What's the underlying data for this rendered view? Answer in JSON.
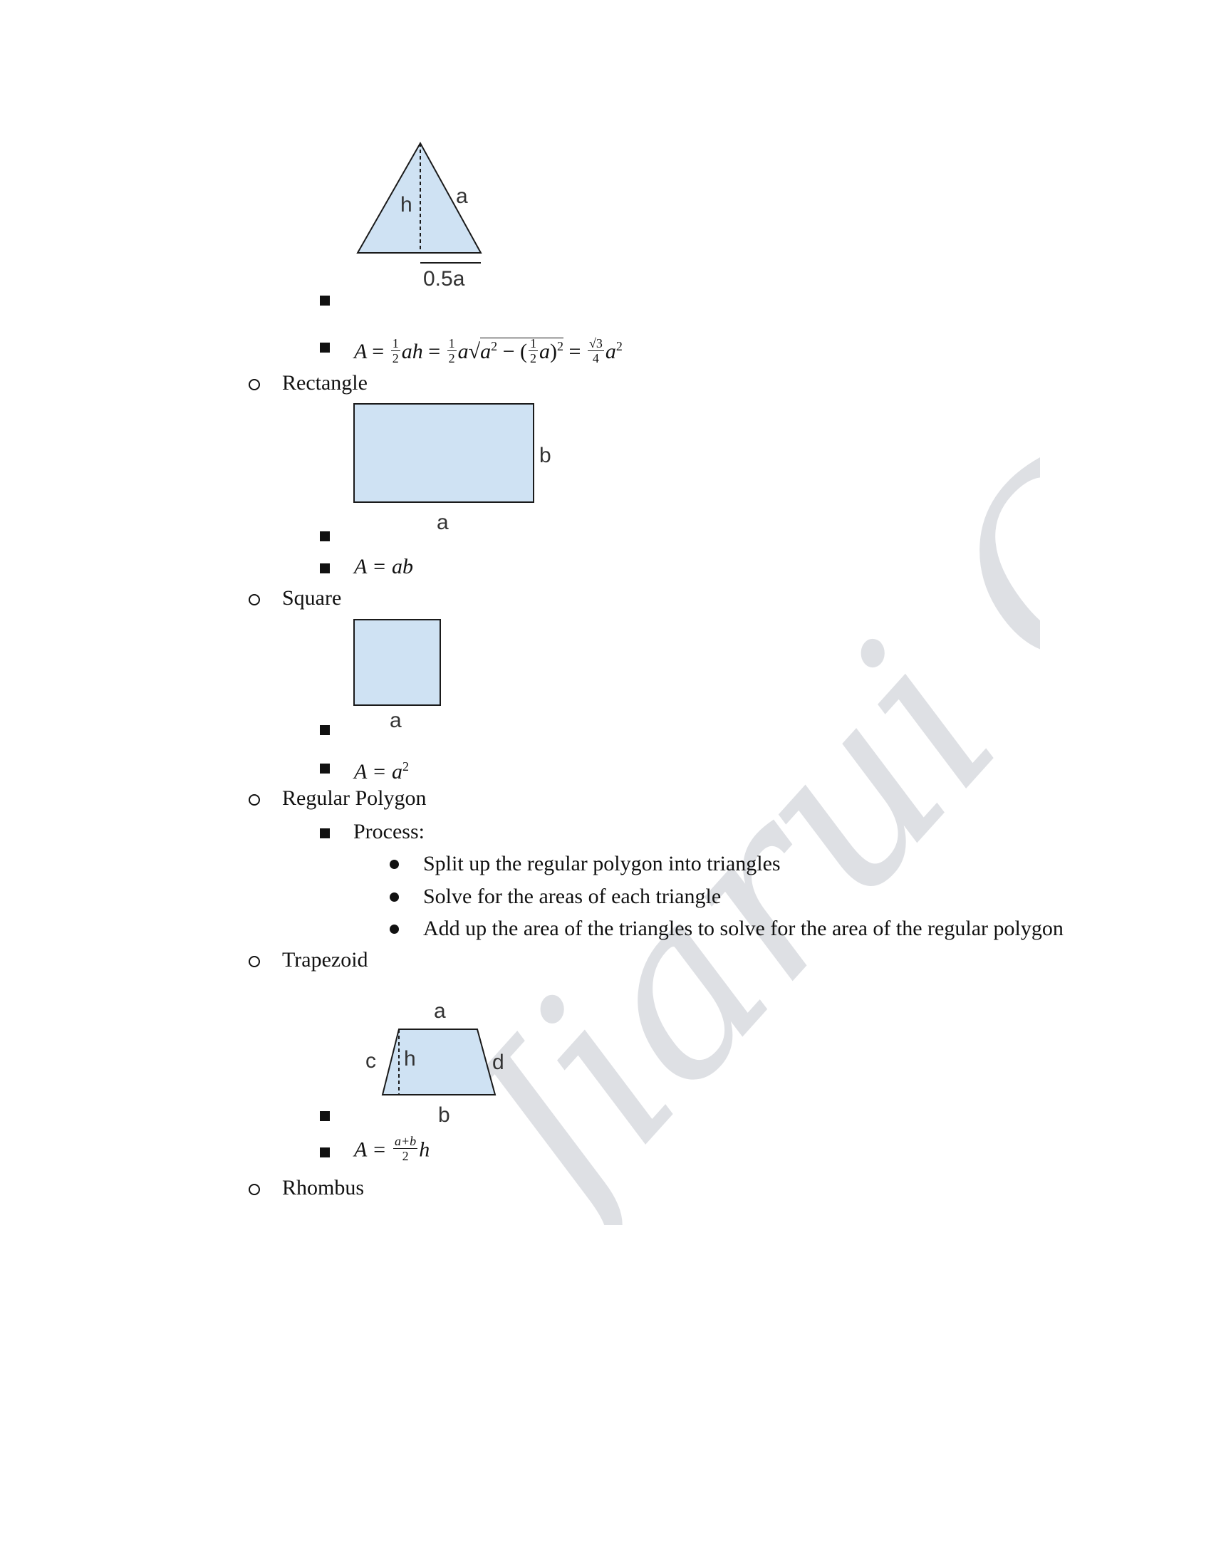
{
  "triangle": {
    "label_h": "h",
    "label_a": "a",
    "label_base": "0.5a",
    "formula": {
      "lhs": "A",
      "eq": "=",
      "half": [
        "1",
        "2"
      ],
      "ah": "ah",
      "a": "a",
      "a2_base": "a",
      "a2_exp": "2",
      "minus": "−",
      "paren_a": "a",
      "exp2": "2",
      "sqrt3": "√3",
      "four": "4",
      "final_a": "a",
      "final_exp": "2"
    }
  },
  "rectangle": {
    "heading": "Rectangle",
    "label_b": "b",
    "label_a": "a",
    "formula": "A  =  ab"
  },
  "square": {
    "heading": "Square",
    "label_a": "a",
    "formula_base": "A  =  a",
    "formula_exp": "2"
  },
  "regular_polygon": {
    "heading": "Regular Polygon",
    "process_label": "Process:",
    "steps": [
      "Split up the regular polygon into triangles",
      "Solve for the areas of each triangle",
      "Add up the area of the triangles to solve for the area of the regular polygon"
    ]
  },
  "trapezoid": {
    "heading": "Trapezoid",
    "label_a": "a",
    "label_b": "b",
    "label_c": "c",
    "label_d": "d",
    "label_h": "h",
    "formula_lhs": "A  =",
    "formula_num": "a+b",
    "formula_den": "2",
    "formula_h": "h"
  },
  "rhombus": {
    "heading": "Rhombus"
  },
  "watermark": {
    "text": "Jiarui Cai"
  },
  "colors": {
    "shape_fill": "#cfe2f3",
    "shape_stroke": "#1a1a1a",
    "watermark": "#d9dbe0"
  }
}
